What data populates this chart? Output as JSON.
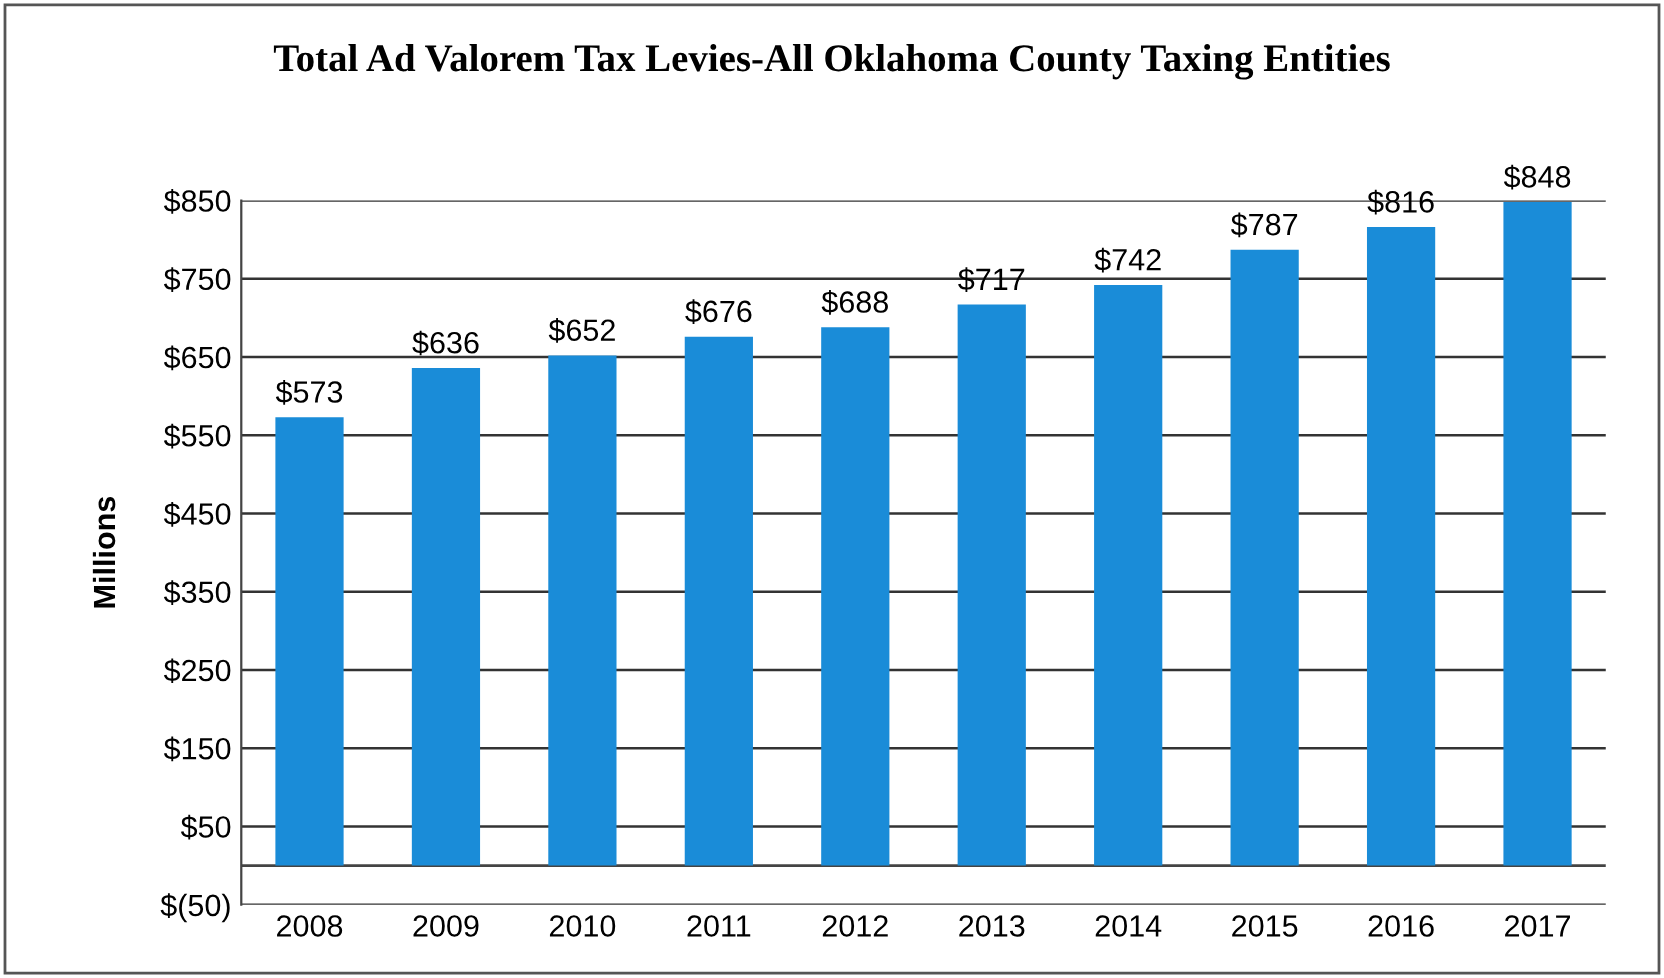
{
  "chart_data": {
    "type": "bar",
    "title": "Total Ad Valorem Tax Levies-All Oklahoma County Taxing Entities",
    "ylabel": "Millions",
    "categories": [
      "2008",
      "2009",
      "2010",
      "2011",
      "2012",
      "2013",
      "2014",
      "2015",
      "2016",
      "2017"
    ],
    "values": [
      573,
      636,
      652,
      676,
      688,
      717,
      742,
      787,
      816,
      848
    ],
    "value_labels": [
      "$573",
      "$636",
      "$652",
      "$676",
      "$688",
      "$717",
      "$742",
      "$787",
      "$816",
      "$848"
    ],
    "color": "#1a8cd8",
    "ylim": [
      -50,
      850
    ],
    "yticks": [
      {
        "value": -50,
        "label": "$(50)"
      },
      {
        "value": 50,
        "label": "$50"
      },
      {
        "value": 150,
        "label": "$150"
      },
      {
        "value": 250,
        "label": "$250"
      },
      {
        "value": 350,
        "label": "$350"
      },
      {
        "value": 450,
        "label": "$450"
      },
      {
        "value": 550,
        "label": "$550"
      },
      {
        "value": 650,
        "label": "$650"
      },
      {
        "value": 750,
        "label": "$750"
      },
      {
        "value": 850,
        "label": "$850"
      }
    ],
    "grid": "y"
  }
}
